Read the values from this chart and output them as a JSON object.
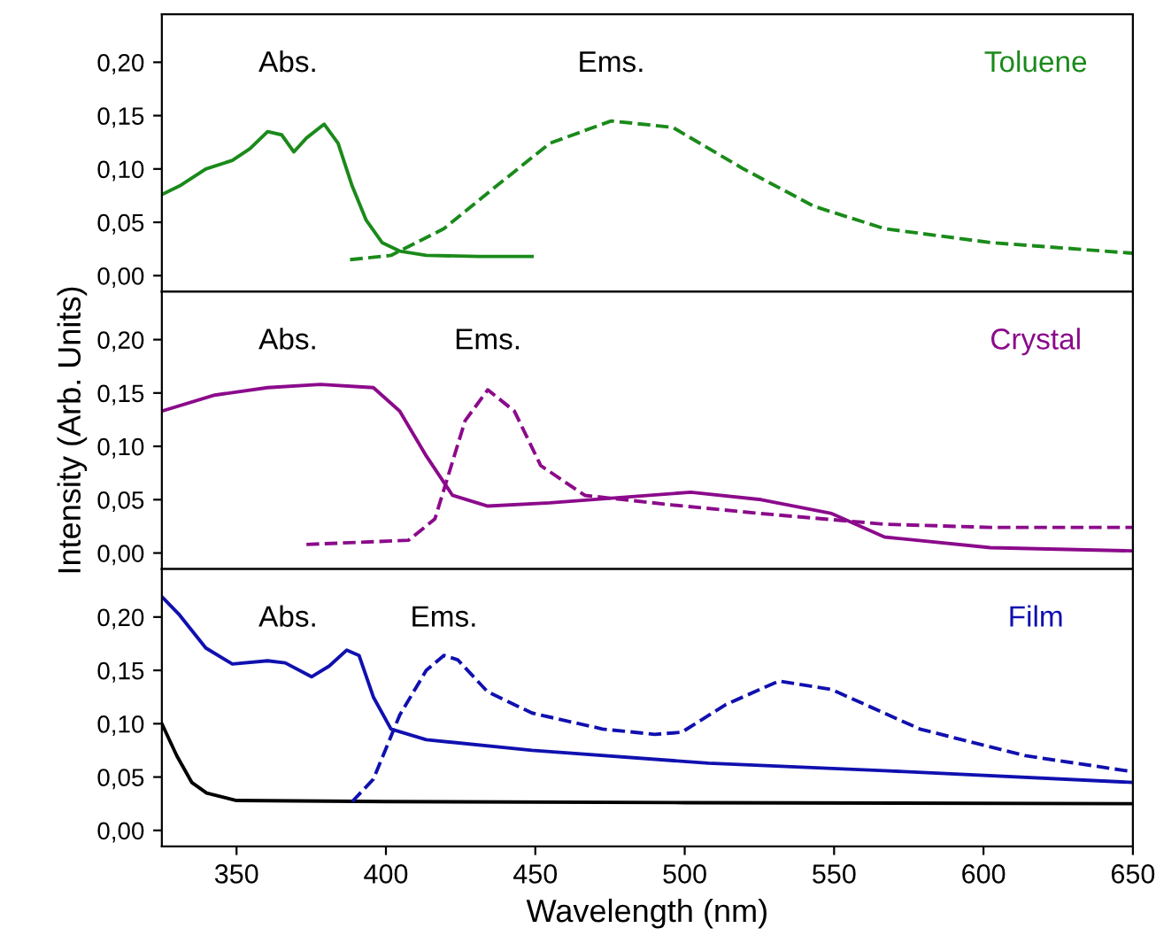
{
  "chart_data": [
    {
      "type": "line",
      "tick_labels": "y",
      "xlim": [
        325,
        650
      ],
      "ylim": [
        -0.015,
        0.245
      ],
      "yticks": [
        {
          "value": 0,
          "label": "0,00"
        },
        {
          "value": 0.05,
          "label": "0,05"
        },
        {
          "value": 0.1,
          "label": "0,10"
        },
        {
          "value": 0.15,
          "label": "0,15"
        },
        {
          "value": 0.2,
          "label": "0,20"
        }
      ],
      "xticks": [
        350,
        400,
        450,
        500,
        550,
        600,
        650
      ],
      "series": [
        {
          "color": "#1a8a1a",
          "line_style": "solid",
          "x": [
            325,
            330.9,
            339.7,
            348.6,
            354.5,
            360.4,
            365.1,
            369.2,
            373.4,
            379.3,
            384,
            388.7,
            393.4,
            398.7,
            404.6,
            413.5,
            431.2,
            448.9
          ],
          "values": [
            0.076,
            0.084,
            0.1,
            0.108,
            0.119,
            0.135,
            0.132,
            0.116,
            0.129,
            0.142,
            0.124,
            0.084,
            0.052,
            0.031,
            0.023,
            0.019,
            0.018,
            0.018
          ]
        },
        {
          "color": "#1a8a1a",
          "line_style": "dashed",
          "x": [
            388,
            401.7,
            419.4,
            437,
            454.8,
            475.4,
            496,
            519.7,
            543.3,
            566.9,
            602.3,
            650
          ],
          "values": [
            0.015,
            0.019,
            0.044,
            0.084,
            0.124,
            0.145,
            0.139,
            0.1,
            0.065,
            0.044,
            0.031,
            0.021
          ]
        }
      ],
      "annotations": [
        "Abs.",
        "Ems.",
        "Toluene"
      ]
    },
    {
      "type": "line",
      "tick_labels": "y",
      "xlim": [
        325,
        650
      ],
      "ylim": [
        -0.015,
        0.245
      ],
      "yticks": [
        {
          "value": 0,
          "label": "0,00"
        },
        {
          "value": 0.05,
          "label": "0,05"
        },
        {
          "value": 0.1,
          "label": "0,10"
        },
        {
          "value": 0.15,
          "label": "0,15"
        },
        {
          "value": 0.2,
          "label": "0,20"
        }
      ],
      "xticks": [
        350,
        400,
        450,
        500,
        550,
        600,
        650
      ],
      "ylabel": "Intensity (Arb. Units)",
      "series": [
        {
          "color": "#8b0a8b",
          "line_style": "solid",
          "x": [
            325,
            342.7,
            360.4,
            378.1,
            395.8,
            404.6,
            413.5,
            422.3,
            434.1,
            454.8,
            478.4,
            502,
            525.6,
            549.2,
            566.9,
            602.3,
            650
          ],
          "values": [
            0.133,
            0.148,
            0.155,
            0.158,
            0.155,
            0.133,
            0.091,
            0.054,
            0.044,
            0.047,
            0.052,
            0.057,
            0.05,
            0.037,
            0.015,
            0.005,
            0.002
          ]
        },
        {
          "color": "#8b0a8b",
          "line_style": "dashed",
          "x": [
            373.4,
            407.6,
            416.4,
            426.5,
            434.1,
            443,
            451.8,
            466.6,
            496,
            525.6,
            566.9,
            602.3,
            650
          ],
          "values": [
            0.008,
            0.012,
            0.032,
            0.124,
            0.153,
            0.133,
            0.082,
            0.054,
            0.045,
            0.037,
            0.027,
            0.024,
            0.024
          ]
        }
      ],
      "annotations": [
        "Abs.",
        "Ems.",
        "Crystal"
      ]
    },
    {
      "type": "line",
      "xlim": [
        325,
        650
      ],
      "ylim": [
        -0.015,
        0.245
      ],
      "yticks": [
        {
          "value": 0,
          "label": "0,00"
        },
        {
          "value": 0.05,
          "label": "0,05"
        },
        {
          "value": 0.1,
          "label": "0,10"
        },
        {
          "value": 0.15,
          "label": "0,15"
        },
        {
          "value": 0.2,
          "label": "0,20"
        }
      ],
      "xticks": [
        350,
        400,
        450,
        500,
        550,
        600,
        650
      ],
      "xlabel": "Wavelength (nm)",
      "series": [
        {
          "color": "#000000",
          "line_style": "solid",
          "x": [
            325,
            330,
            335,
            340,
            350,
            400,
            500,
            650
          ],
          "values": [
            0.1,
            0.07,
            0.045,
            0.035,
            0.028,
            0.027,
            0.026,
            0.025
          ]
        },
        {
          "color": "#1010b0",
          "line_style": "solid",
          "x": [
            325,
            330.9,
            339.7,
            348.6,
            360.4,
            366.3,
            375.1,
            381,
            386.9,
            391,
            395.8,
            401.7,
            413.5,
            448.9,
            507.9,
            566.9,
            650
          ],
          "values": [
            0.219,
            0.202,
            0.171,
            0.156,
            0.159,
            0.157,
            0.144,
            0.154,
            0.169,
            0.164,
            0.125,
            0.095,
            0.085,
            0.075,
            0.063,
            0.056,
            0.045
          ]
        },
        {
          "color": "#1010b0",
          "line_style": "dashed",
          "x": [
            388.7,
            395.8,
            404.6,
            413.5,
            419.4,
            424,
            434,
            448.9,
            472.5,
            490,
            499,
            513.8,
            531.5,
            549.2,
            578.7,
            614,
            650
          ],
          "values": [
            0.027,
            0.048,
            0.108,
            0.15,
            0.164,
            0.16,
            0.13,
            0.11,
            0.095,
            0.09,
            0.092,
            0.118,
            0.14,
            0.132,
            0.095,
            0.07,
            0.055
          ]
        }
      ],
      "annotations": [
        "Abs.",
        "Ems.",
        "Film"
      ]
    }
  ]
}
